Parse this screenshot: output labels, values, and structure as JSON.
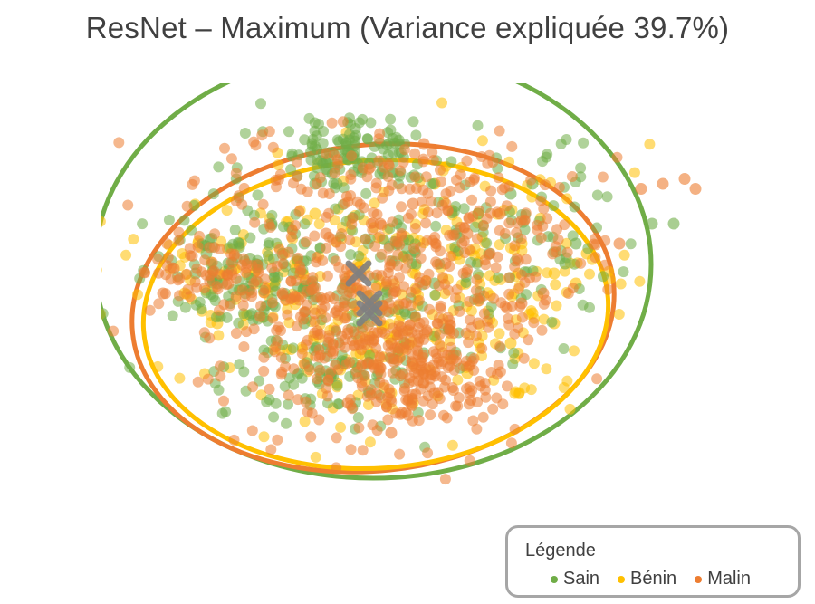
{
  "chart_data": {
    "type": "scatter",
    "title": "ResNet – Maximum (Variance expliquée 39.7%)",
    "xlabel": "",
    "ylabel": "",
    "grid": false,
    "legend_position": "bottom-right",
    "legend_title": "Légende",
    "series": [
      {
        "name": "Sain",
        "color": "#70ad47",
        "center": [
          -0.1,
          0.3
        ],
        "points": [
          [
            -0.4,
            1.35
          ],
          [
            -0.2,
            1.45
          ],
          [
            0.0,
            1.4
          ],
          [
            0.1,
            1.3
          ],
          [
            -0.5,
            1.2
          ],
          [
            -0.3,
            1.2
          ],
          [
            -1.5,
            0.5
          ],
          [
            -1.3,
            0.4
          ],
          [
            -1.6,
            0.3
          ],
          [
            -1.2,
            0.6
          ],
          [
            -1.4,
            0.2
          ],
          [
            -1.1,
            0.45
          ],
          [
            -0.8,
            0.5
          ],
          [
            -0.6,
            0.6
          ],
          [
            -0.9,
            0.8
          ],
          [
            -0.7,
            0.3
          ],
          [
            1.0,
            0.9
          ],
          [
            1.3,
            1.1
          ],
          [
            1.5,
            1.2
          ],
          [
            0.8,
            0.7
          ],
          [
            1.1,
            0.5
          ],
          [
            0.6,
            0.2
          ],
          [
            0.5,
            -0.5
          ],
          [
            0.3,
            -0.7
          ],
          [
            0.0,
            -0.9
          ],
          [
            -0.3,
            -0.6
          ],
          [
            -0.6,
            -0.2
          ],
          [
            2.6,
            0.8
          ],
          [
            2.8,
            0.8
          ],
          [
            1.8,
            0.4
          ],
          [
            1.9,
            0.6
          ]
        ]
      },
      {
        "name": "Bénin",
        "color": "#ffc000",
        "center": [
          0.0,
          0.0
        ],
        "points": [
          [
            0.6,
            1.2
          ],
          [
            1.0,
            0.9
          ],
          [
            1.7,
            0.3
          ],
          [
            1.5,
            -0.1
          ],
          [
            1.3,
            -0.4
          ],
          [
            1.4,
            0.6
          ],
          [
            -1.7,
            0.1
          ],
          [
            -1.4,
            -0.2
          ],
          [
            0.2,
            -0.9
          ],
          [
            0.4,
            -1.0
          ],
          [
            -0.5,
            0.9
          ],
          [
            1.9,
            0.2
          ],
          [
            1.7,
            -0.2
          ],
          [
            2.0,
            0.5
          ],
          [
            0.9,
            -0.7
          ],
          [
            -0.3,
            -0.8
          ]
        ]
      },
      {
        "name": "Malin",
        "color": "#ed7d31",
        "center": [
          0.0,
          -0.1
        ],
        "points": [
          [
            0.0,
            0.0
          ],
          [
            0.2,
            -0.4
          ],
          [
            0.4,
            -0.6
          ],
          [
            0.5,
            -0.8
          ],
          [
            0.6,
            -0.9
          ],
          [
            0.3,
            -1.1
          ],
          [
            -0.2,
            -0.3
          ],
          [
            -0.5,
            -0.1
          ],
          [
            -0.8,
            0.1
          ],
          [
            -1.3,
            0.2
          ],
          [
            -1.8,
            0.35
          ],
          [
            -1.9,
            0.1
          ],
          [
            0.7,
            0.4
          ],
          [
            0.9,
            0.7
          ],
          [
            1.2,
            0.9
          ],
          [
            0.4,
            1.0
          ],
          [
            0.1,
            0.8
          ],
          [
            -0.4,
            0.7
          ],
          [
            1.0,
            -0.2
          ],
          [
            1.4,
            0.0
          ],
          [
            1.6,
            0.1
          ],
          [
            0.2,
            -1.3
          ],
          [
            -0.2,
            -1.0
          ],
          [
            2.7,
            1.2
          ],
          [
            2.9,
            1.25
          ],
          [
            3.0,
            1.15
          ],
          [
            2.5,
            1.15
          ],
          [
            2.3,
            0.6
          ],
          [
            0.5,
            1.6
          ]
        ]
      }
    ]
  },
  "legend": {
    "title": "Légende",
    "items": [
      "Sain",
      "Bénin",
      "Malin"
    ]
  }
}
